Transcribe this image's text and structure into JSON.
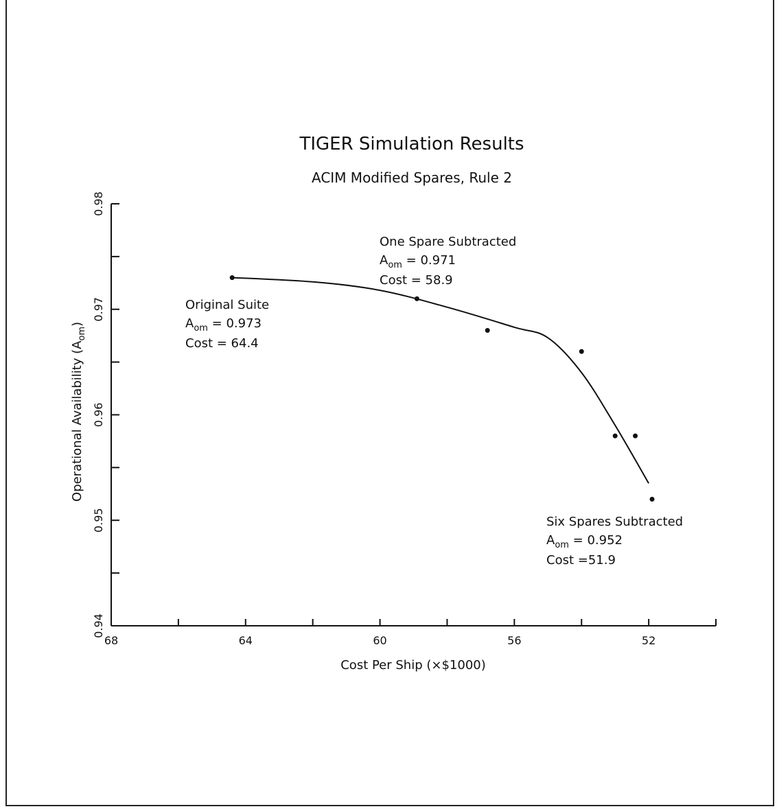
{
  "chart_data": {
    "type": "scatter",
    "title": "TIGER Simulation Results",
    "subtitle": "ACIM Modified Spares, Rule 2",
    "xlabel": "Cost Per Ship (×$1000)",
    "ylabel_main": "Operational Availability (A",
    "ylabel_sub": "om",
    "ylabel_close": ")",
    "xlim": [
      68,
      50
    ],
    "ylim": [
      0.94,
      0.98
    ],
    "x_ticks": [
      68,
      66,
      64,
      62,
      60,
      58,
      56,
      54,
      52,
      50
    ],
    "x_tick_labels": [
      {
        "value": 68,
        "label": "68"
      },
      {
        "value": 64,
        "label": "64"
      },
      {
        "value": 60,
        "label": "60"
      },
      {
        "value": 56,
        "label": "56"
      },
      {
        "value": 52,
        "label": "52"
      }
    ],
    "y_ticks": [
      0.94,
      0.945,
      0.95,
      0.955,
      0.96,
      0.965,
      0.97,
      0.975,
      0.98
    ],
    "y_tick_labels": [
      {
        "value": 0.94,
        "label": "0.94"
      },
      {
        "value": 0.95,
        "label": "0.95"
      },
      {
        "value": 0.96,
        "label": "0.96"
      },
      {
        "value": 0.97,
        "label": "0.97"
      },
      {
        "value": 0.98,
        "label": "0.98"
      }
    ],
    "points": [
      {
        "x": 64.4,
        "y": 0.973
      },
      {
        "x": 58.9,
        "y": 0.971
      },
      {
        "x": 56.8,
        "y": 0.968
      },
      {
        "x": 54.0,
        "y": 0.966
      },
      {
        "x": 53.0,
        "y": 0.958
      },
      {
        "x": 52.4,
        "y": 0.958
      },
      {
        "x": 51.9,
        "y": 0.952
      }
    ],
    "fit_curve": [
      {
        "x": 64.4,
        "y": 0.973
      },
      {
        "x": 62.0,
        "y": 0.9726
      },
      {
        "x": 60.0,
        "y": 0.9718
      },
      {
        "x": 58.0,
        "y": 0.9702
      },
      {
        "x": 56.0,
        "y": 0.9683
      },
      {
        "x": 55.0,
        "y": 0.9673
      },
      {
        "x": 54.0,
        "y": 0.964
      },
      {
        "x": 53.0,
        "y": 0.959
      },
      {
        "x": 52.0,
        "y": 0.9535
      }
    ],
    "annotations": [
      {
        "name": "original-suite",
        "lines": [
          "Original Suite",
          "A",
          "om",
          " = 0.973",
          "Cost  = 64.4"
        ],
        "x": 66.2,
        "y": 0.9706
      },
      {
        "name": "one-spare",
        "lines": [
          "One Spare Subtracted",
          "A",
          "om",
          " = 0.971",
          "Cost  = 58.9"
        ],
        "x": 59.0,
        "y": 0.9765
      },
      {
        "name": "six-spares",
        "lines": [
          "Six Spares Subtracted",
          "A",
          "om",
          " = 0.952",
          "Cost  =51.9"
        ],
        "x": 54.5,
        "y": 0.9498
      }
    ],
    "grid": false
  }
}
